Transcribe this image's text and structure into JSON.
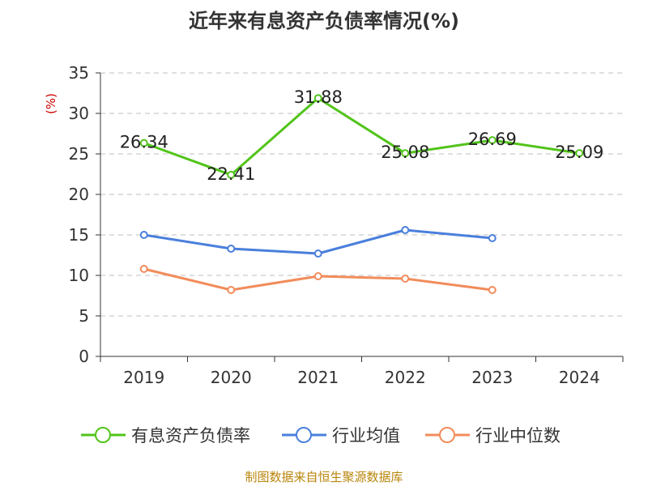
{
  "chart_data": {
    "type": "line",
    "title": "近年来有息资产负债率情况(%)",
    "ylabel": "(%)",
    "categories": [
      "2019",
      "2020",
      "2021",
      "2022",
      "2023",
      "2024"
    ],
    "ylim": [
      0,
      35
    ],
    "yticks": [
      "0",
      "5",
      "10",
      "15",
      "20",
      "25",
      "30",
      "35"
    ],
    "grid": "horizontal dashed",
    "legend_position": "bottom",
    "series": [
      {
        "name": "有息资产负债率",
        "color": "#52c41a",
        "values": [
          26.34,
          22.41,
          31.88,
          25.08,
          26.69,
          25.09
        ],
        "labels": [
          "26.34",
          "22.41",
          "31.88",
          "25.08",
          "26.69",
          "25.09"
        ]
      },
      {
        "name": "行业均值",
        "color": "#4a7fdc",
        "values": [
          15.0,
          13.3,
          12.7,
          15.6,
          14.6,
          null
        ]
      },
      {
        "name": "行业中位数",
        "color": "#f28c5b",
        "values": [
          10.8,
          8.2,
          9.9,
          9.6,
          8.2,
          null
        ]
      }
    ]
  },
  "source": "制图数据来自恒生聚源数据库"
}
